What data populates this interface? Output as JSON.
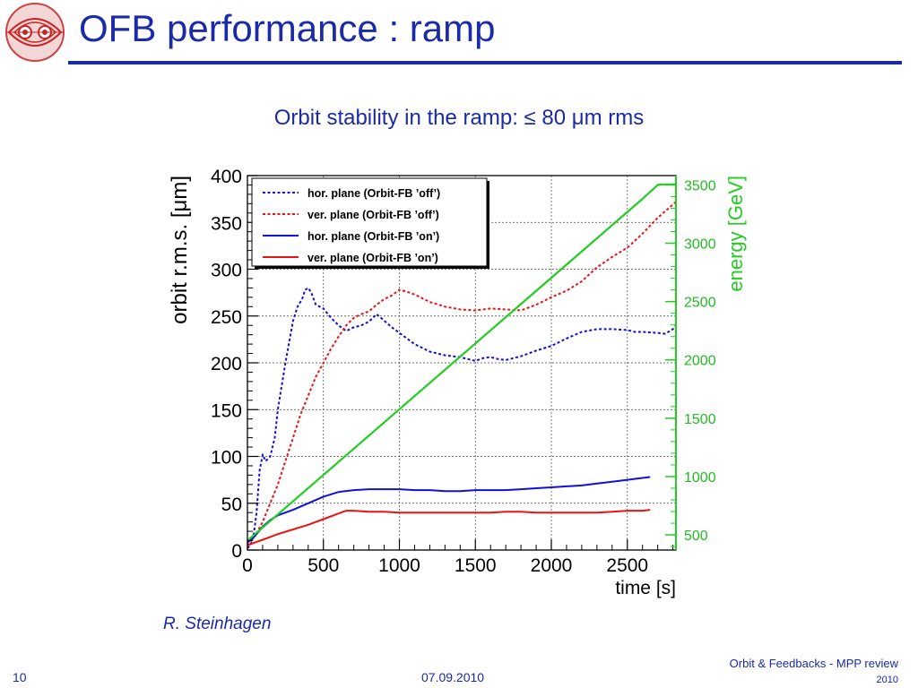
{
  "slide": {
    "title": "OFB performance : ramp",
    "subtitle": "Orbit stability in the ramp:  ≤ 80 μm rms",
    "author": "R. Steinhagen",
    "page_number": "10",
    "date": "07.09.2010",
    "footer_line1": "Orbit & Feedbacks - MPP review",
    "footer_line2": "2010",
    "title_color": "#1a2aa8"
  },
  "chart_data": {
    "type": "line",
    "xlabel": "time [s]",
    "ylabel": "orbit r.m.s. [μm]",
    "y2label": "energy [GeV]",
    "xlim": [
      0,
      2820
    ],
    "ylim": [
      0,
      400
    ],
    "y2lim": [
      370,
      3580
    ],
    "xticks": [
      0,
      500,
      1000,
      1500,
      2000,
      2500
    ],
    "yticks": [
      0,
      50,
      100,
      150,
      200,
      250,
      300,
      350,
      400
    ],
    "y2ticks": [
      500,
      1000,
      1500,
      2000,
      2500,
      3000,
      3500
    ],
    "grid": true,
    "legend_position": "top-left",
    "series": [
      {
        "name": "hor. plane (Orbit-FB ’off’)",
        "color": "#1010dd",
        "style": "dotted",
        "axis": "left",
        "x": [
          0,
          20,
          40,
          60,
          80,
          100,
          120,
          150,
          180,
          200,
          250,
          300,
          330,
          360,
          380,
          400,
          420,
          450,
          500,
          550,
          600,
          650,
          700,
          750,
          800,
          850,
          900,
          950,
          1000,
          1100,
          1200,
          1300,
          1400,
          1500,
          1550,
          1600,
          1650,
          1700,
          1800,
          1900,
          2000,
          2100,
          2200,
          2300,
          2400,
          2500,
          2550,
          2600,
          2700,
          2750,
          2800,
          2820
        ],
        "y": [
          2,
          5,
          15,
          40,
          85,
          102,
          95,
          100,
          120,
          150,
          200,
          245,
          260,
          268,
          278,
          280,
          275,
          262,
          258,
          248,
          240,
          234,
          238,
          240,
          244,
          252,
          245,
          238,
          232,
          220,
          212,
          208,
          206,
          202,
          205,
          206,
          204,
          203,
          207,
          213,
          218,
          226,
          233,
          236,
          236,
          235,
          233,
          233,
          232,
          231,
          236,
          240
        ]
      },
      {
        "name": "ver. plane (Orbit-FB ’off’)",
        "color": "#ee1111",
        "style": "dotted",
        "axis": "left",
        "x": [
          0,
          50,
          100,
          150,
          200,
          250,
          300,
          350,
          400,
          450,
          500,
          550,
          600,
          650,
          700,
          750,
          800,
          850,
          900,
          950,
          1000,
          1050,
          1100,
          1200,
          1300,
          1400,
          1500,
          1600,
          1700,
          1800,
          1900,
          2000,
          2100,
          2200,
          2300,
          2400,
          2500,
          2600,
          2700,
          2820
        ],
        "y": [
          5,
          15,
          30,
          50,
          70,
          95,
          120,
          145,
          165,
          185,
          200,
          215,
          228,
          240,
          248,
          252,
          255,
          262,
          268,
          272,
          278,
          276,
          273,
          265,
          260,
          257,
          256,
          258,
          257,
          256,
          262,
          270,
          277,
          287,
          302,
          313,
          323,
          338,
          355,
          372
        ]
      },
      {
        "name": "hor. plane (Orbit-FB ’on’)",
        "color": "#1010dd",
        "style": "solid",
        "axis": "left",
        "x": [
          0,
          50,
          100,
          150,
          200,
          250,
          300,
          400,
          500,
          600,
          700,
          800,
          900,
          1000,
          1100,
          1200,
          1300,
          1400,
          1500,
          1600,
          1700,
          1800,
          1900,
          2000,
          2100,
          2200,
          2300,
          2400,
          2500,
          2600,
          2650
        ],
        "y": [
          8,
          15,
          25,
          32,
          37,
          40,
          43,
          50,
          57,
          62,
          64,
          65,
          65,
          65,
          64,
          64,
          63,
          63,
          64,
          64,
          64,
          65,
          66,
          67,
          68,
          69,
          71,
          73,
          75,
          77,
          78
        ]
      },
      {
        "name": "ver. plane (Orbit-FB ’on’)",
        "color": "#ee1111",
        "style": "solid",
        "axis": "left",
        "x": [
          0,
          50,
          100,
          150,
          200,
          300,
          400,
          500,
          600,
          650,
          700,
          800,
          900,
          1000,
          1100,
          1200,
          1300,
          1400,
          1500,
          1600,
          1700,
          1800,
          1900,
          2000,
          2100,
          2200,
          2300,
          2400,
          2500,
          2600,
          2650
        ],
        "y": [
          5,
          8,
          11,
          14,
          17,
          22,
          27,
          33,
          39,
          42,
          42,
          41,
          41,
          40,
          40,
          40,
          40,
          40,
          40,
          40,
          41,
          41,
          40,
          40,
          40,
          40,
          40,
          41,
          42,
          42,
          43
        ]
      },
      {
        "name": "energy",
        "color": "#22cc22",
        "style": "solid",
        "axis": "right",
        "x": [
          0,
          2600,
          2700,
          2740,
          2820
        ],
        "y": [
          450,
          3380,
          3500,
          3505,
          3505
        ]
      }
    ]
  }
}
